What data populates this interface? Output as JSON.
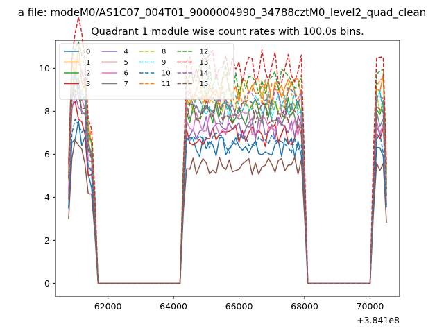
{
  "figure": {
    "suptitle": "a file: modeM0/AS1C07_004T01_9000004990_34788cztM0_level2_quad_clean",
    "title": "Quadrant 1 module wise count rates with 100.0s bins."
  },
  "chart_data": {
    "type": "line",
    "title": "Quadrant 1 module wise count rates with 100.0s bins.",
    "xlabel": "",
    "ylabel": "",
    "x_offset_label": "+3.841e8",
    "xlim": [
      60400,
      70900
    ],
    "ylim": [
      -0.6,
      11.3
    ],
    "xticks": [
      62000,
      64000,
      66000,
      68000,
      70000
    ],
    "xtick_labels": [
      "62000",
      "64000",
      "66000",
      "68000",
      "70000"
    ],
    "yticks": [
      0,
      2,
      4,
      6,
      8,
      10
    ],
    "ytick_labels": [
      "0",
      "2",
      "4",
      "6",
      "8",
      "10"
    ],
    "grid": false,
    "legend_position": "top-left",
    "legend_columns": 4,
    "segments": [
      {
        "start": 60800,
        "end": 61600
      },
      {
        "start": 64300,
        "end": 68000
      },
      {
        "start": 70100,
        "end": 70500
      }
    ],
    "series": [
      {
        "name": "0",
        "level": 6.3,
        "color": "#1f77b4",
        "dash": "solid"
      },
      {
        "name": "1",
        "level": 9.0,
        "color": "#ff7f0e",
        "dash": "solid"
      },
      {
        "name": "2",
        "level": 8.0,
        "color": "#2ca02c",
        "dash": "solid"
      },
      {
        "name": "3",
        "level": 6.9,
        "color": "#d62728",
        "dash": "solid"
      },
      {
        "name": "4",
        "level": 7.2,
        "color": "#9467bd",
        "dash": "solid"
      },
      {
        "name": "5",
        "level": 5.5,
        "color": "#8c564b",
        "dash": "solid"
      },
      {
        "name": "6",
        "level": 7.4,
        "color": "#e377c2",
        "dash": "solid"
      },
      {
        "name": "7",
        "level": 7.8,
        "color": "#7f7f7f",
        "dash": "solid"
      },
      {
        "name": "8",
        "level": 8.6,
        "color": "#bcbd22",
        "dash": "dashed"
      },
      {
        "name": "9",
        "level": 8.3,
        "color": "#17becf",
        "dash": "dashed"
      },
      {
        "name": "10",
        "level": 6.5,
        "color": "#1f77b4",
        "dash": "dashed"
      },
      {
        "name": "11",
        "level": 8.9,
        "color": "#ff7f0e",
        "dash": "dashed"
      },
      {
        "name": "12",
        "level": 9.4,
        "color": "#2ca02c",
        "dash": "dashed"
      },
      {
        "name": "13",
        "level": 10.1,
        "color": "#d62728",
        "dash": "dashed"
      },
      {
        "name": "14",
        "level": 8.4,
        "color": "#9467bd",
        "dash": "dashed"
      },
      {
        "name": "15",
        "level": 7.9,
        "color": "#8c564b",
        "dash": "dashed"
      }
    ]
  }
}
